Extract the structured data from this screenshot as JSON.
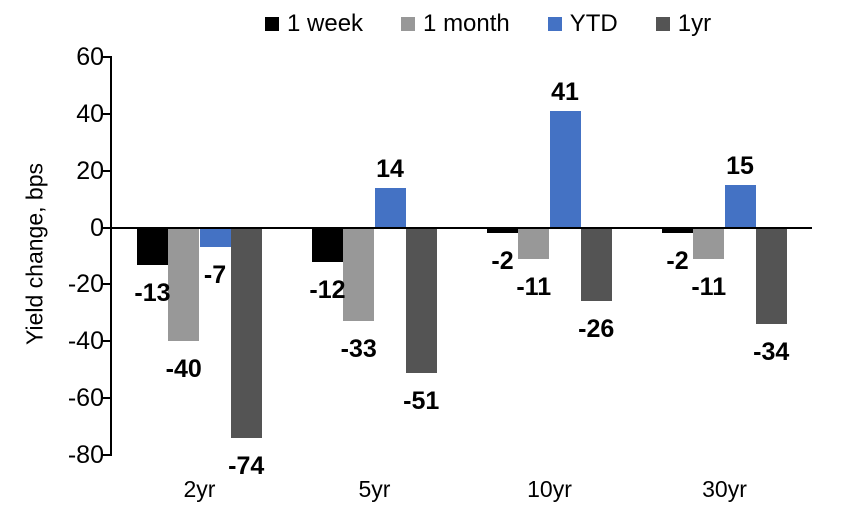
{
  "chart_data": {
    "type": "bar",
    "title": "",
    "categories": [
      "2yr",
      "5yr",
      "10yr",
      "30yr"
    ],
    "series": [
      {
        "name": "1 week",
        "color": "#000000",
        "values": [
          -13,
          -12,
          -2,
          -2
        ]
      },
      {
        "name": "1 month",
        "color": "#989898",
        "values": [
          -40,
          -33,
          -11,
          -11
        ]
      },
      {
        "name": "YTD",
        "color": "#4472C4",
        "values": [
          -7,
          14,
          41,
          15
        ]
      },
      {
        "name": "1yr",
        "color": "#545454",
        "values": [
          -74,
          -51,
          -26,
          -34
        ]
      }
    ],
    "xlabel": "",
    "ylabel": "Yield change, bps",
    "ylim": [
      -80,
      60
    ],
    "yticks": [
      60,
      40,
      20,
      0,
      -20,
      -40,
      -60,
      -80
    ],
    "grid": false,
    "legend_position": "top",
    "data_labels": "outside-end",
    "axis_color": "#000000",
    "background_color": "#ffffff"
  }
}
